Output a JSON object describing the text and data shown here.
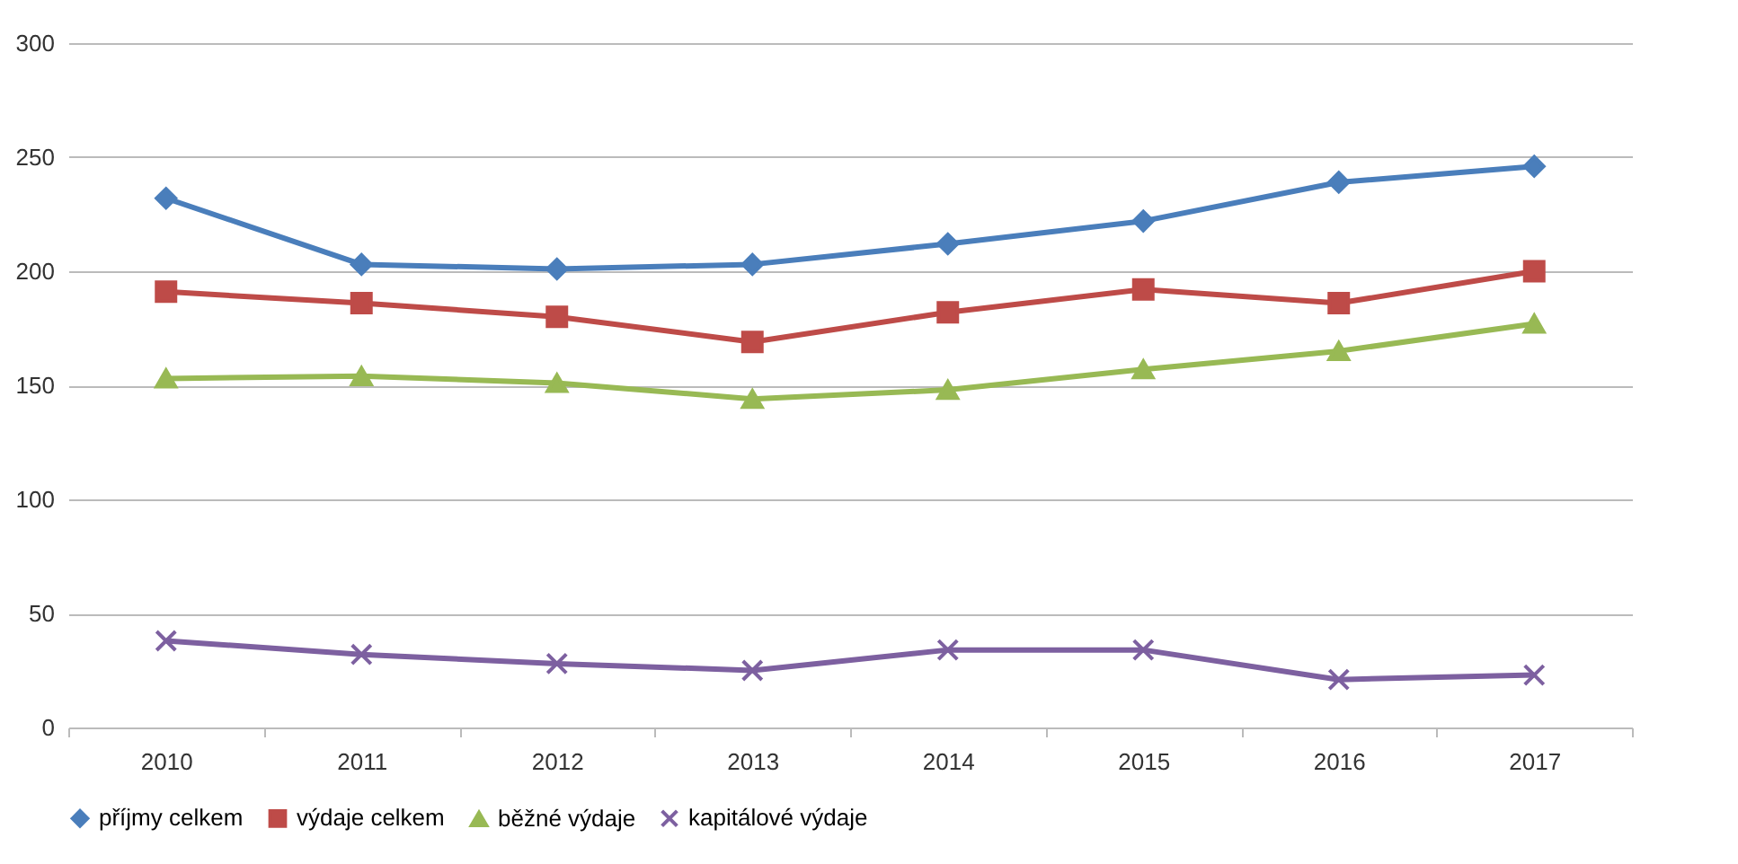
{
  "chart_data": {
    "type": "line",
    "categories": [
      "2010",
      "2011",
      "2012",
      "2013",
      "2014",
      "2015",
      "2016",
      "2017"
    ],
    "ylim": [
      0,
      300
    ],
    "yticks": [
      0,
      50,
      100,
      150,
      200,
      250,
      300
    ],
    "grid": "y",
    "legend": "bottom",
    "series": [
      {
        "name": "příjmy celkem",
        "color": "#4a7ebb",
        "marker": "diamond",
        "values": [
          232,
          203,
          201,
          203,
          212,
          222,
          239,
          246
        ]
      },
      {
        "name": "výdaje celkem",
        "color": "#be4b48",
        "marker": "square",
        "values": [
          191,
          186,
          180,
          169,
          182,
          192,
          186,
          200
        ]
      },
      {
        "name": "běžné výdaje",
        "color": "#98b954",
        "marker": "triangle",
        "values": [
          153,
          154,
          151,
          144,
          148,
          157,
          165,
          177
        ]
      },
      {
        "name": "kapitálové výdaje",
        "color": "#7d60a0",
        "marker": "cross",
        "values": [
          38,
          32,
          28,
          25,
          34,
          34,
          21,
          23
        ]
      }
    ]
  }
}
